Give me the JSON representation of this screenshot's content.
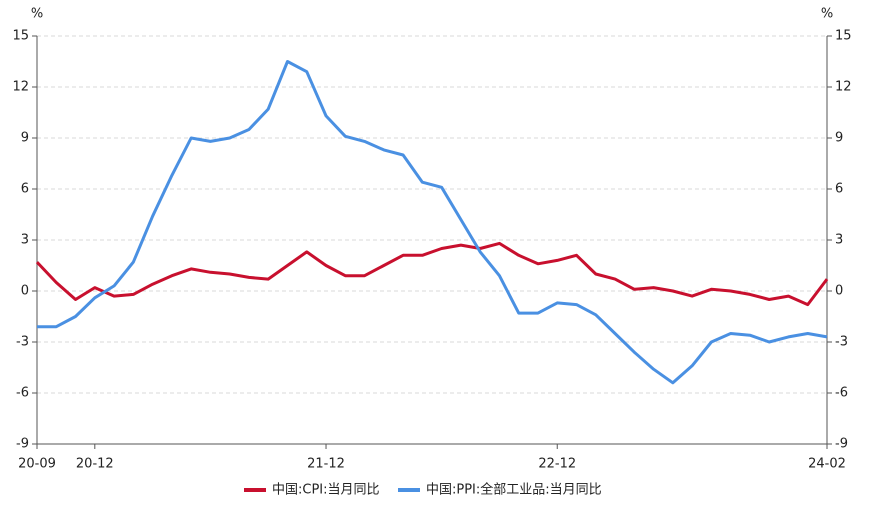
{
  "chart_data": {
    "type": "line",
    "y_label": "%",
    "y2_label": "%",
    "categories": [
      "20-09",
      null,
      null,
      "20-12",
      null,
      null,
      null,
      null,
      null,
      null,
      null,
      null,
      null,
      null,
      null,
      "21-12",
      null,
      null,
      null,
      null,
      null,
      null,
      null,
      null,
      null,
      null,
      null,
      "22-12",
      null,
      null,
      null,
      null,
      null,
      null,
      null,
      null,
      null,
      null,
      null,
      null,
      null,
      "24-02"
    ],
    "series": [
      {
        "name": "中国:CPI:当月同比",
        "color": "#c8102e",
        "values": [
          1.7,
          0.5,
          -0.5,
          0.2,
          -0.3,
          -0.2,
          0.4,
          0.9,
          1.3,
          1.1,
          1.0,
          0.8,
          0.7,
          1.5,
          2.3,
          1.5,
          0.9,
          0.9,
          1.5,
          2.1,
          2.1,
          2.5,
          2.7,
          2.5,
          2.8,
          2.1,
          1.6,
          1.8,
          2.1,
          1.0,
          0.7,
          0.1,
          0.2,
          0.0,
          -0.3,
          0.1,
          0.0,
          -0.2,
          -0.5,
          -0.3,
          -0.8,
          0.7
        ]
      },
      {
        "name": "中国:PPI:全部工业品:当月同比",
        "color": "#4a90e2",
        "values": [
          -2.1,
          -2.1,
          -1.5,
          -0.4,
          0.3,
          1.7,
          4.4,
          6.8,
          9.0,
          8.8,
          9.0,
          9.5,
          10.7,
          13.5,
          12.9,
          10.3,
          9.1,
          8.8,
          8.3,
          8.0,
          6.4,
          6.1,
          4.2,
          2.3,
          0.9,
          -1.3,
          -1.3,
          -0.7,
          -0.8,
          -1.4,
          -2.5,
          -3.6,
          -4.6,
          -5.4,
          -4.4,
          -3.0,
          -2.5,
          -2.6,
          -3.0,
          -2.7,
          -2.5,
          -2.7
        ]
      }
    ],
    "ylim": [
      -9,
      15
    ],
    "yticks": [
      -9,
      -6,
      -3,
      0,
      3,
      6,
      9,
      12,
      15
    ],
    "y2lim": [
      -9,
      15
    ],
    "y2ticks": [
      -9,
      -6,
      -3,
      0,
      3,
      6,
      9,
      12,
      15
    ],
    "grid": true,
    "legend": "bottom"
  }
}
